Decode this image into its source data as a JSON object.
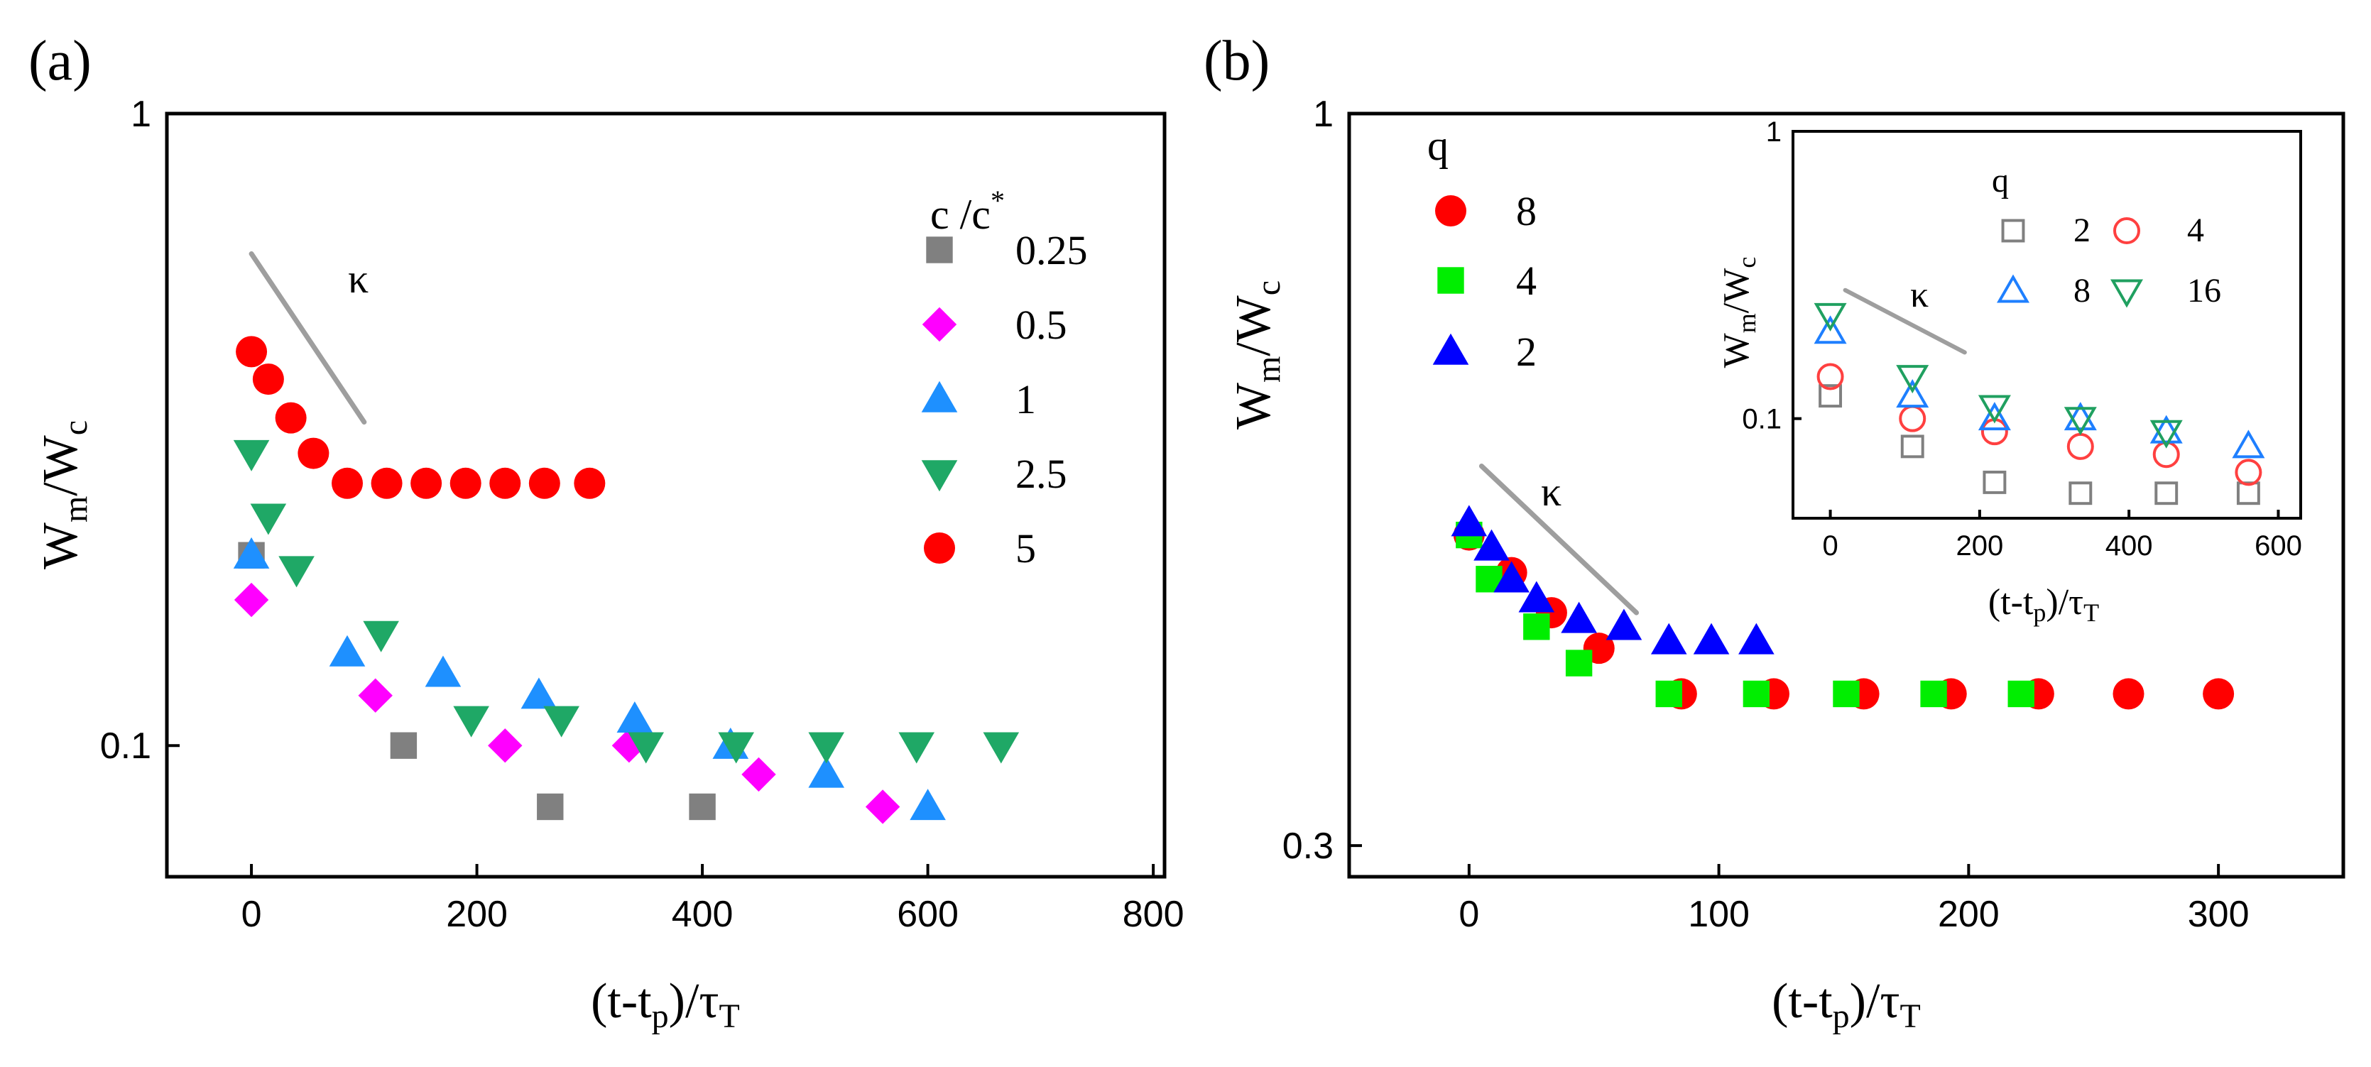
{
  "chart_data": [
    {
      "panel_label": "(a)",
      "type": "scatter",
      "x_ticks": [
        "0",
        "200",
        "400",
        "600",
        "800"
      ],
      "y_ticks": [
        "1",
        "0.1"
      ],
      "xlim": [
        -75,
        810
      ],
      "ylim_log": [
        0.062,
        1.0
      ],
      "xlabel_parts": [
        "(t-t",
        "p",
        ")/τ",
        "T"
      ],
      "ylabel_parts": [
        "W",
        "m",
        "/W",
        "c"
      ],
      "legend_title_parts": [
        "c /c",
        "*"
      ],
      "slope_label": "κ",
      "slope_line": {
        "x": [
          0,
          100
        ],
        "y": [
          0.6,
          0.325
        ]
      },
      "series": [
        {
          "name": "0.25",
          "marker": "square",
          "color": "#808080",
          "points": [
            [
              0,
              0.2
            ],
            [
              135,
              0.1
            ],
            [
              265,
              0.08
            ],
            [
              400,
              0.08
            ]
          ]
        },
        {
          "name": "0.5",
          "marker": "diamond",
          "color": "#ff00ff",
          "points": [
            [
              0,
              0.17
            ],
            [
              110,
              0.12
            ],
            [
              225,
              0.1
            ],
            [
              335,
              0.1
            ],
            [
              450,
              0.09
            ],
            [
              560,
              0.08
            ]
          ]
        },
        {
          "name": "1",
          "marker": "triangle-up",
          "color": "#1e90ff",
          "points": [
            [
              0,
              0.2
            ],
            [
              85,
              0.14
            ],
            [
              170,
              0.13
            ],
            [
              255,
              0.12
            ],
            [
              340,
              0.11
            ],
            [
              425,
              0.1
            ],
            [
              510,
              0.09
            ],
            [
              600,
              0.08
            ]
          ]
        },
        {
          "name": "2.5",
          "marker": "triangle-down",
          "color": "#1fa866",
          "points": [
            [
              0,
              0.29
            ],
            [
              15,
              0.23
            ],
            [
              40,
              0.19
            ],
            [
              115,
              0.15
            ],
            [
              195,
              0.11
            ],
            [
              275,
              0.11
            ],
            [
              350,
              0.1
            ],
            [
              430,
              0.1
            ],
            [
              510,
              0.1
            ],
            [
              590,
              0.1
            ],
            [
              665,
              0.1
            ]
          ]
        },
        {
          "name": "5",
          "marker": "circle",
          "color": "#ff0000",
          "points": [
            [
              0,
              0.42
            ],
            [
              15,
              0.38
            ],
            [
              35,
              0.33
            ],
            [
              55,
              0.29
            ],
            [
              85,
              0.26
            ],
            [
              120,
              0.26
            ],
            [
              155,
              0.26
            ],
            [
              190,
              0.26
            ],
            [
              225,
              0.26
            ],
            [
              260,
              0.26
            ],
            [
              300,
              0.26
            ]
          ]
        }
      ]
    },
    {
      "panel_label": "(b)",
      "type": "scatter",
      "x_ticks": [
        "0",
        "100",
        "200",
        "300"
      ],
      "y_ticks": [
        "1",
        "0.3"
      ],
      "xlim": [
        -48,
        350
      ],
      "ylim_log": [
        0.285,
        1.0
      ],
      "xlabel_parts": [
        "(t-t",
        "p",
        ")/τ",
        "T"
      ],
      "ylabel_parts": [
        "W",
        "m",
        "/W",
        "c"
      ],
      "legend_title": "q",
      "slope_label": "κ",
      "slope_line": {
        "x": [
          5,
          67
        ],
        "y": [
          0.56,
          0.44
        ]
      },
      "series": [
        {
          "name": "8",
          "marker": "circle",
          "color": "#ff0000",
          "points": [
            [
              0,
              0.5
            ],
            [
              17,
              0.47
            ],
            [
              33,
              0.44
            ],
            [
              52,
              0.415
            ],
            [
              85,
              0.385
            ],
            [
              122,
              0.385
            ],
            [
              158,
              0.385
            ],
            [
              193,
              0.385
            ],
            [
              228,
              0.385
            ],
            [
              264,
              0.385
            ],
            [
              300,
              0.385
            ]
          ]
        },
        {
          "name": "4",
          "marker": "square",
          "color": "#00ee00",
          "points": [
            [
              0,
              0.5
            ],
            [
              8,
              0.465
            ],
            [
              27,
              0.43
            ],
            [
              44,
              0.405
            ],
            [
              80,
              0.385
            ],
            [
              115,
              0.385
            ],
            [
              151,
              0.385
            ],
            [
              186,
              0.385
            ],
            [
              221,
              0.385
            ]
          ]
        },
        {
          "name": "2",
          "marker": "triangle-up",
          "color": "#0000ff",
          "points": [
            [
              0,
              0.51
            ],
            [
              9,
              0.49
            ],
            [
              17,
              0.465
            ],
            [
              27,
              0.45
            ],
            [
              44,
              0.435
            ],
            [
              62,
              0.43
            ],
            [
              80,
              0.42
            ],
            [
              97,
              0.42
            ],
            [
              115,
              0.42
            ]
          ]
        }
      ],
      "inset": {
        "type": "scatter",
        "x_ticks": [
          "0",
          "200",
          "400",
          "600"
        ],
        "y_ticks": [
          "1",
          "0.1"
        ],
        "xlim": [
          -50,
          630
        ],
        "ylim_log": [
          0.045,
          1.0
        ],
        "xlabel_parts": [
          "(t-t",
          "p",
          ")/τ",
          "T"
        ],
        "ylabel_parts": [
          "W",
          "m",
          "/W",
          "c"
        ],
        "legend_title": "q",
        "slope_label": "κ",
        "slope_line": {
          "x": [
            20,
            180
          ],
          "y": [
            0.28,
            0.17
          ]
        },
        "series": [
          {
            "name": "2",
            "marker": "square-open",
            "color": "#808080",
            "points": [
              [
                0,
                0.12
              ],
              [
                110,
                0.08
              ],
              [
                220,
                0.06
              ],
              [
                335,
                0.055
              ],
              [
                450,
                0.055
              ],
              [
                560,
                0.055
              ]
            ]
          },
          {
            "name": "4",
            "marker": "circle-open",
            "color": "#ff4040",
            "points": [
              [
                0,
                0.14
              ],
              [
                110,
                0.1
              ],
              [
                220,
                0.09
              ],
              [
                335,
                0.08
              ],
              [
                450,
                0.075
              ],
              [
                560,
                0.065
              ]
            ]
          },
          {
            "name": "8",
            "marker": "triangle-up-open",
            "color": "#1e7fff",
            "points": [
              [
                0,
                0.2
              ],
              [
                110,
                0.12
              ],
              [
                220,
                0.1
              ],
              [
                335,
                0.1
              ],
              [
                450,
                0.09
              ],
              [
                560,
                0.08
              ]
            ]
          },
          {
            "name": "16",
            "marker": "triangle-down-open",
            "color": "#20a060",
            "points": [
              [
                0,
                0.23
              ],
              [
                110,
                0.14
              ],
              [
                220,
                0.11
              ],
              [
                335,
                0.1
              ],
              [
                450,
                0.09
              ]
            ]
          }
        ]
      }
    }
  ]
}
